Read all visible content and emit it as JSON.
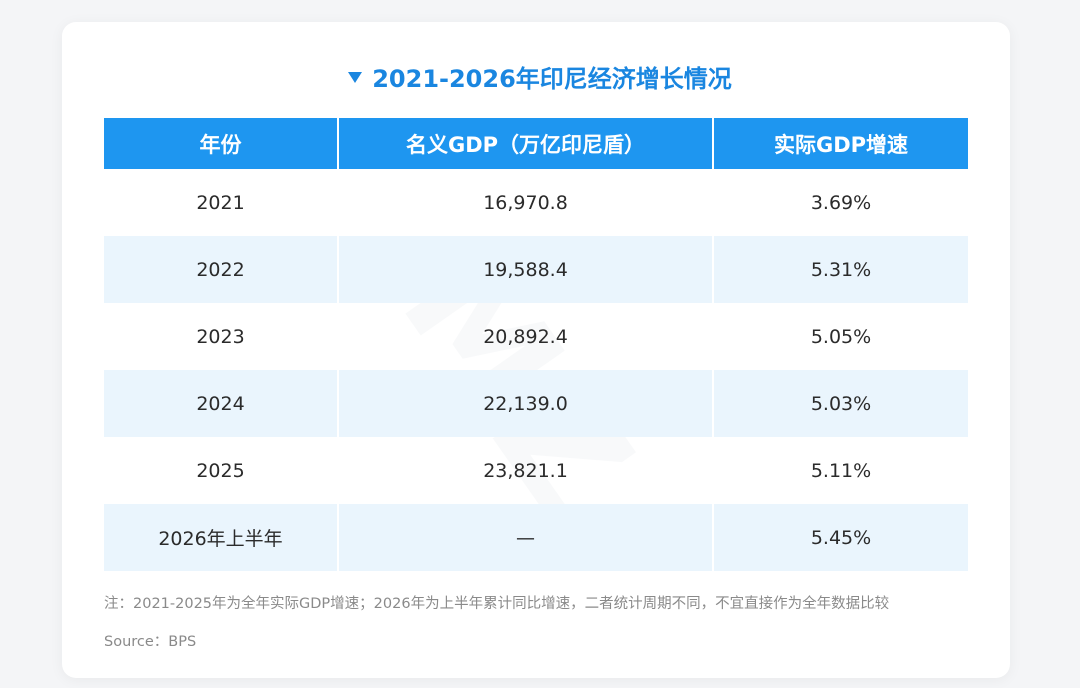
{
  "chart_data": {
    "type": "table",
    "title": "2021-2026年印尼经济增长情况",
    "columns": [
      "年份",
      "名义GDP（万亿印尼盾）",
      "实际GDP增速"
    ],
    "rows": [
      [
        "2021",
        "16,970.8",
        "3.69%"
      ],
      [
        "2022",
        "19,588.4",
        "5.31%"
      ],
      [
        "2023",
        "20,892.4",
        "5.05%"
      ],
      [
        "2024",
        "22,139.0",
        "5.03%"
      ],
      [
        "2025",
        "23,821.1",
        "5.11%"
      ],
      [
        "2026年上半年",
        "—",
        "5.45%"
      ]
    ],
    "note": "注：2021-2025年为全年实际GDP增速；2026年为上半年累计同比增速，二者统计周期不同，不宜直接作为全年数据比较",
    "source": "Source：BPS"
  },
  "colors": {
    "header_bg": "#1e96f0",
    "title": "#1a86e0",
    "alt_row_bg": "#eaf5fd"
  }
}
